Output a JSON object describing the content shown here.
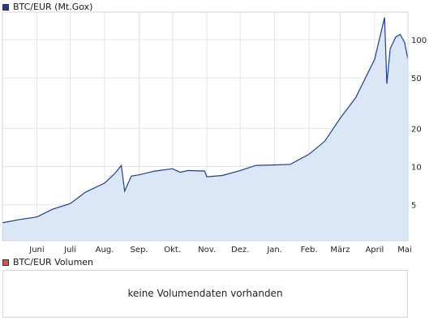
{
  "colors": {
    "line": "#1f3f8a",
    "area": "#dbe6f6",
    "grid": "#e1e4e8",
    "frame": "#cfd6e0",
    "volume_swatch": "#d9534f"
  },
  "legend": {
    "price_label": "BTC/EUR (Mt.Gox)",
    "volume_label": "BTC/EUR Volumen"
  },
  "volume_panel": {
    "message": "keine Volumendaten vorhanden"
  },
  "chart_data": {
    "type": "area",
    "title": "",
    "xlabel": "",
    "ylabel": "",
    "y_scale": "log",
    "ylim": [
      2.6,
      165
    ],
    "grid": true,
    "legend_position": "top-left",
    "series": [
      {
        "name": "BTC/EUR (Mt.Gox)",
        "points": [
          [
            "2012-05-01",
            3.6
          ],
          [
            "2012-05-15",
            3.8
          ],
          [
            "2012-06-01",
            4.0
          ],
          [
            "2012-06-15",
            4.6
          ],
          [
            "2012-07-01",
            5.1
          ],
          [
            "2012-07-15",
            6.3
          ],
          [
            "2012-08-01",
            7.4
          ],
          [
            "2012-08-10",
            8.8
          ],
          [
            "2012-08-16",
            10.2
          ],
          [
            "2012-08-19",
            6.4
          ],
          [
            "2012-08-25",
            8.4
          ],
          [
            "2012-09-01",
            8.6
          ],
          [
            "2012-09-15",
            9.2
          ],
          [
            "2012-10-01",
            9.6
          ],
          [
            "2012-10-08",
            9.0
          ],
          [
            "2012-10-15",
            9.3
          ],
          [
            "2012-10-30",
            9.2
          ],
          [
            "2012-11-01",
            8.3
          ],
          [
            "2012-11-15",
            8.5
          ],
          [
            "2012-12-01",
            9.3
          ],
          [
            "2012-12-15",
            10.2
          ],
          [
            "2013-01-01",
            10.3
          ],
          [
            "2013-01-15",
            10.4
          ],
          [
            "2013-02-01",
            12.5
          ],
          [
            "2013-02-15",
            15.8
          ],
          [
            "2013-03-01",
            24.0
          ],
          [
            "2013-03-15",
            35.0
          ],
          [
            "2013-04-01",
            70.0
          ],
          [
            "2013-04-10",
            150.0
          ],
          [
            "2013-04-12",
            45.0
          ],
          [
            "2013-04-15",
            85.0
          ],
          [
            "2013-04-20",
            105.0
          ],
          [
            "2013-04-24",
            110.0
          ],
          [
            "2013-04-28",
            95.0
          ],
          [
            "2013-05-01",
            70.0
          ]
        ]
      }
    ],
    "y_ticks": [
      5,
      10,
      20,
      50,
      100
    ],
    "x_ticks": [
      {
        "date": "2012-06-01",
        "label": "Juni"
      },
      {
        "date": "2012-07-01",
        "label": "Juli"
      },
      {
        "date": "2012-08-01",
        "label": "Aug."
      },
      {
        "date": "2012-09-01",
        "label": "Sep."
      },
      {
        "date": "2012-10-01",
        "label": "Okt."
      },
      {
        "date": "2012-11-01",
        "label": "Nov."
      },
      {
        "date": "2012-12-01",
        "label": "Dez."
      },
      {
        "date": "2013-01-01",
        "label": "Jan."
      },
      {
        "date": "2013-02-01",
        "label": "Feb."
      },
      {
        "date": "2013-03-01",
        "label": "März"
      },
      {
        "date": "2013-04-01",
        "label": "April"
      },
      {
        "date": "2013-05-01",
        "label": "Mai"
      }
    ]
  }
}
